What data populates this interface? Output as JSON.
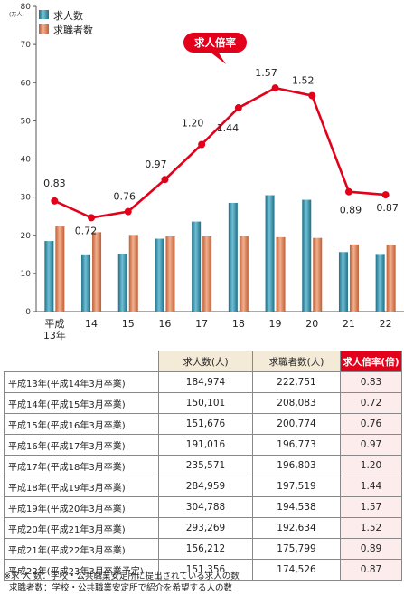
{
  "chart_data": {
    "type": "bar+line",
    "y_unit": "(万人)",
    "ylim": [
      0,
      80
    ],
    "yticks": [
      0,
      10,
      20,
      30,
      40,
      50,
      60,
      70,
      80
    ],
    "categories": [
      "平成\n13年",
      "14",
      "15",
      "16",
      "17",
      "18",
      "19",
      "20",
      "21",
      "22"
    ],
    "series": [
      {
        "name": "求人数",
        "kind": "bar",
        "color": "#2e8ca6",
        "values": [
          18.5,
          15.0,
          15.2,
          19.1,
          23.6,
          28.5,
          30.5,
          29.3,
          15.6,
          15.1
        ]
      },
      {
        "name": "求職者数",
        "kind": "bar",
        "color": "#d9825a",
        "values": [
          22.3,
          20.8,
          20.1,
          19.7,
          19.7,
          19.8,
          19.5,
          19.3,
          17.6,
          17.5
        ]
      },
      {
        "name": "求人倍率",
        "kind": "line",
        "color": "#e3001b",
        "values": [
          0.83,
          0.72,
          0.76,
          0.97,
          1.2,
          1.44,
          1.57,
          1.52,
          0.89,
          0.87
        ],
        "labels": [
          "0.83",
          "0.72",
          "0.76",
          "0.97",
          "1.20",
          "1.44",
          "1.57",
          "1.52",
          "0.89",
          "0.87"
        ]
      }
    ],
    "callout": "求人倍率",
    "legend_position": "top-left",
    "grid": false
  },
  "table": {
    "headers": [
      "求人数(人)",
      "求職者数(人)",
      "求人倍率(倍)"
    ],
    "rows": [
      {
        "label": "平成13年(平成14年3月卒業)",
        "jobs": "184,974",
        "seekers": "222,751",
        "rate": "0.83"
      },
      {
        "label": "平成14年(平成15年3月卒業)",
        "jobs": "150,101",
        "seekers": "208,083",
        "rate": "0.72"
      },
      {
        "label": "平成15年(平成16年3月卒業)",
        "jobs": "151,676",
        "seekers": "200,774",
        "rate": "0.76"
      },
      {
        "label": "平成16年(平成17年3月卒業)",
        "jobs": "191,016",
        "seekers": "196,773",
        "rate": "0.97"
      },
      {
        "label": "平成17年(平成18年3月卒業)",
        "jobs": "235,571",
        "seekers": "196,803",
        "rate": "1.20"
      },
      {
        "label": "平成18年(平成19年3月卒業)",
        "jobs": "284,959",
        "seekers": "197,519",
        "rate": "1.44"
      },
      {
        "label": "平成19年(平成20年3月卒業)",
        "jobs": "304,788",
        "seekers": "194,538",
        "rate": "1.57"
      },
      {
        "label": "平成20年(平成21年3月卒業)",
        "jobs": "293,269",
        "seekers": "192,634",
        "rate": "1.52"
      },
      {
        "label": "平成21年(平成22年3月卒業)",
        "jobs": "156,212",
        "seekers": "175,799",
        "rate": "0.89"
      },
      {
        "label": "平成22年(平成23年3月卒業予定)",
        "jobs": "151,356",
        "seekers": "174,526",
        "rate": "0.87"
      }
    ]
  },
  "notes": [
    "※求 人 数：学校・公共職業安定所に提出されている求人の数",
    "  求職者数：学校・公共職業安定所で紹介を希望する人の数"
  ]
}
